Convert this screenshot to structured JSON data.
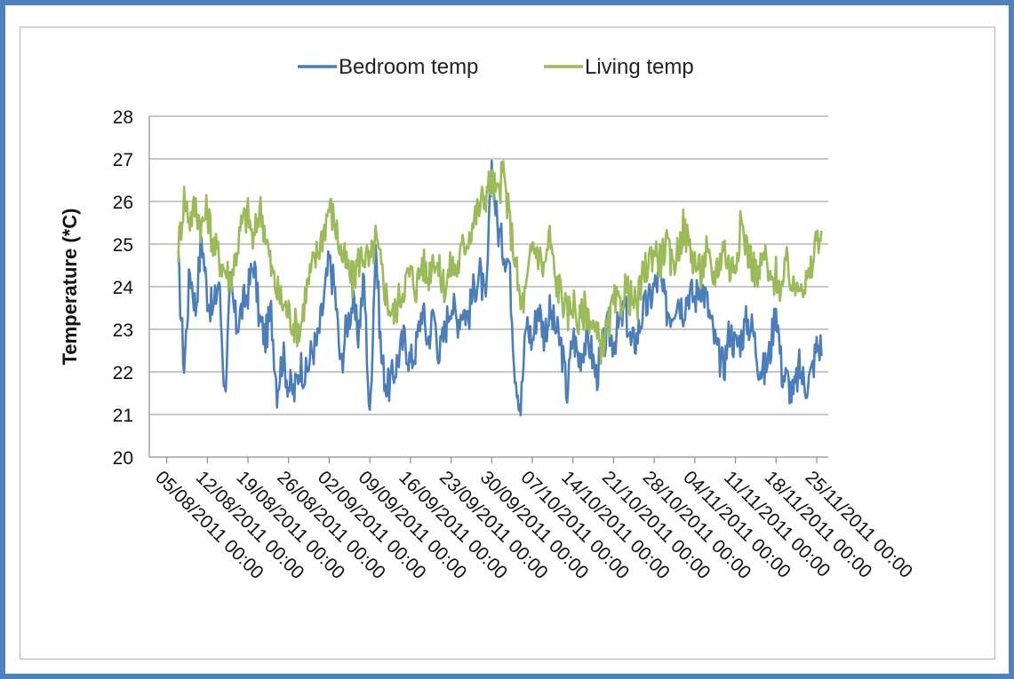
{
  "chart_data": {
    "type": "line",
    "title": "",
    "xlabel": "",
    "ylabel": "Temperature (*C)",
    "ylim": [
      20,
      28
    ],
    "yticks": [
      20,
      21,
      22,
      23,
      24,
      25,
      26,
      27,
      28
    ],
    "xlim": [
      "2011-08-02",
      "2011-11-27"
    ],
    "grid": "horizontal",
    "legend_position": "top",
    "tick_labels": [
      "05/08/2011 00:00",
      "12/08/2011 00:00",
      "19/08/2011 00:00",
      "26/08/2011 00:00",
      "02/09/2011 00:00",
      "09/09/2011 00:00",
      "16/09/2011 00:00",
      "23/09/2011 00:00",
      "30/09/2011 00:00",
      "07/10/2011 00:00",
      "14/10/2011 00:00",
      "21/10/2011 00:00",
      "28/10/2011 00:00",
      "04/11/2011 00:00",
      "11/11/2011 00:00",
      "18/11/2011 00:00",
      "25/11/2011 00:00"
    ],
    "tick_dates": [
      "2011-08-05",
      "2011-08-12",
      "2011-08-19",
      "2011-08-26",
      "2011-09-02",
      "2011-09-09",
      "2011-09-16",
      "2011-09-23",
      "2011-09-30",
      "2011-10-07",
      "2011-10-14",
      "2011-10-21",
      "2011-10-28",
      "2011-11-04",
      "2011-11-11",
      "2011-11-18",
      "2011-11-25"
    ],
    "series": [
      {
        "name": "Bedroom temp",
        "color": "#4a7ebb",
        "x": [
          "2011-08-07",
          "2011-08-08",
          "2011-08-09",
          "2011-08-10",
          "2011-08-11",
          "2011-08-12",
          "2011-08-13",
          "2011-08-14",
          "2011-08-15",
          "2011-08-16",
          "2011-08-17",
          "2011-08-18",
          "2011-08-19",
          "2011-08-20",
          "2011-08-21",
          "2011-08-22",
          "2011-08-23",
          "2011-08-24",
          "2011-08-25",
          "2011-08-26",
          "2011-08-27",
          "2011-08-28",
          "2011-08-29",
          "2011-08-30",
          "2011-08-31",
          "2011-09-01",
          "2011-09-02",
          "2011-09-03",
          "2011-09-04",
          "2011-09-05",
          "2011-09-06",
          "2011-09-07",
          "2011-09-08",
          "2011-09-09",
          "2011-09-10",
          "2011-09-11",
          "2011-09-12",
          "2011-09-13",
          "2011-09-14",
          "2011-09-15",
          "2011-09-16",
          "2011-09-17",
          "2011-09-18",
          "2011-09-19",
          "2011-09-20",
          "2011-09-21",
          "2011-09-22",
          "2011-09-23",
          "2011-09-24",
          "2011-09-25",
          "2011-09-26",
          "2011-09-27",
          "2011-09-28",
          "2011-09-29",
          "2011-09-30",
          "2011-10-01",
          "2011-10-02",
          "2011-10-03",
          "2011-10-04",
          "2011-10-05",
          "2011-10-06",
          "2011-10-07",
          "2011-10-08",
          "2011-10-09",
          "2011-10-10",
          "2011-10-11",
          "2011-10-12",
          "2011-10-13",
          "2011-10-14",
          "2011-10-15",
          "2011-10-16",
          "2011-10-17",
          "2011-10-18",
          "2011-10-19",
          "2011-10-20",
          "2011-10-21",
          "2011-10-22",
          "2011-10-23",
          "2011-10-24",
          "2011-10-25",
          "2011-10-26",
          "2011-10-27",
          "2011-10-28",
          "2011-10-29",
          "2011-10-30",
          "2011-10-31",
          "2011-11-01",
          "2011-11-02",
          "2011-11-03",
          "2011-11-04",
          "2011-11-05",
          "2011-11-06",
          "2011-11-07",
          "2011-11-08",
          "2011-11-09",
          "2011-11-10",
          "2011-11-11",
          "2011-11-12",
          "2011-11-13",
          "2011-11-14",
          "2011-11-15",
          "2011-11-16",
          "2011-11-17",
          "2011-11-18",
          "2011-11-19",
          "2011-11-20",
          "2011-11-21",
          "2011-11-22",
          "2011-11-23",
          "2011-11-24",
          "2011-11-25"
        ],
        "y": [
          24.5,
          22.1,
          24.4,
          23.5,
          25.2,
          23.8,
          23.4,
          24.2,
          21.5,
          24.0,
          23.1,
          23.5,
          23.9,
          24.6,
          23.2,
          22.8,
          23.4,
          21.6,
          22.4,
          21.7,
          21.5,
          22.2,
          21.9,
          22.5,
          22.7,
          23.6,
          24.6,
          23.9,
          22.1,
          23.1,
          23.6,
          22.9,
          24.2,
          20.8,
          25.1,
          22.3,
          21.6,
          21.9,
          22.4,
          22.8,
          22.2,
          22.6,
          23.5,
          22.7,
          23.4,
          22.4,
          23.0,
          23.7,
          23.2,
          23.5,
          23.3,
          24.0,
          24.3,
          23.5,
          26.9,
          25.4,
          24.9,
          24.6,
          22.1,
          21.2,
          23.2,
          22.7,
          23.6,
          22.9,
          23.4,
          23.0,
          22.6,
          21.5,
          22.9,
          22.3,
          22.7,
          22.6,
          21.9,
          22.4,
          23.0,
          22.7,
          23.1,
          23.5,
          22.6,
          22.8,
          23.4,
          23.6,
          24.0,
          24.2,
          23.5,
          23.4,
          23.8,
          23.5,
          23.9,
          23.7,
          24.1,
          23.7,
          23.0,
          22.4,
          22.1,
          23.0,
          22.6,
          22.8,
          23.2,
          23.0,
          22.2,
          22.0,
          22.5,
          23.6,
          22.0,
          21.8,
          21.4,
          22.1,
          21.7,
          21.9,
          22.6
        ]
      },
      {
        "name": "Living temp",
        "color": "#9bbb59",
        "x": [
          "2011-08-07",
          "2011-08-08",
          "2011-08-09",
          "2011-08-10",
          "2011-08-11",
          "2011-08-12",
          "2011-08-13",
          "2011-08-14",
          "2011-08-15",
          "2011-08-16",
          "2011-08-17",
          "2011-08-18",
          "2011-08-19",
          "2011-08-20",
          "2011-08-21",
          "2011-08-22",
          "2011-08-23",
          "2011-08-24",
          "2011-08-25",
          "2011-08-26",
          "2011-08-27",
          "2011-08-28",
          "2011-08-29",
          "2011-08-30",
          "2011-08-31",
          "2011-09-01",
          "2011-09-02",
          "2011-09-03",
          "2011-09-04",
          "2011-09-05",
          "2011-09-06",
          "2011-09-07",
          "2011-09-08",
          "2011-09-09",
          "2011-09-10",
          "2011-09-11",
          "2011-09-12",
          "2011-09-13",
          "2011-09-14",
          "2011-09-15",
          "2011-09-16",
          "2011-09-17",
          "2011-09-18",
          "2011-09-19",
          "2011-09-20",
          "2011-09-21",
          "2011-09-22",
          "2011-09-23",
          "2011-09-24",
          "2011-09-25",
          "2011-09-26",
          "2011-09-27",
          "2011-09-28",
          "2011-09-29",
          "2011-09-30",
          "2011-10-01",
          "2011-10-02",
          "2011-10-03",
          "2011-10-04",
          "2011-10-05",
          "2011-10-06",
          "2011-10-07",
          "2011-10-08",
          "2011-10-09",
          "2011-10-10",
          "2011-10-11",
          "2011-10-12",
          "2011-10-13",
          "2011-10-14",
          "2011-10-15",
          "2011-10-16",
          "2011-10-17",
          "2011-10-18",
          "2011-10-19",
          "2011-10-20",
          "2011-10-21",
          "2011-10-22",
          "2011-10-23",
          "2011-10-24",
          "2011-10-25",
          "2011-10-26",
          "2011-10-27",
          "2011-10-28",
          "2011-10-29",
          "2011-10-30",
          "2011-10-31",
          "2011-11-01",
          "2011-11-02",
          "2011-11-03",
          "2011-11-04",
          "2011-11-05",
          "2011-11-06",
          "2011-11-07",
          "2011-11-08",
          "2011-11-09",
          "2011-11-10",
          "2011-11-11",
          "2011-11-12",
          "2011-11-13",
          "2011-11-14",
          "2011-11-15",
          "2011-11-16",
          "2011-11-17",
          "2011-11-18",
          "2011-11-19",
          "2011-11-20",
          "2011-11-21",
          "2011-11-22",
          "2011-11-23",
          "2011-11-24",
          "2011-11-25"
        ],
        "y": [
          24.9,
          26.1,
          25.6,
          25.9,
          25.4,
          25.8,
          25.0,
          24.7,
          24.4,
          24.2,
          24.8,
          25.5,
          25.7,
          25.0,
          25.9,
          25.3,
          24.4,
          23.9,
          23.6,
          23.4,
          23.1,
          23.0,
          23.9,
          24.4,
          24.8,
          25.3,
          25.9,
          25.5,
          24.8,
          24.5,
          24.1,
          24.6,
          24.8,
          24.5,
          25.1,
          24.4,
          23.7,
          23.3,
          23.7,
          24.1,
          24.3,
          24.0,
          24.6,
          24.2,
          24.8,
          24.3,
          24.0,
          24.5,
          24.4,
          24.9,
          25.2,
          25.6,
          25.9,
          26.2,
          26.5,
          26.1,
          26.7,
          25.6,
          24.7,
          23.5,
          23.9,
          25.0,
          24.8,
          24.4,
          25.2,
          24.1,
          23.9,
          23.3,
          23.7,
          23.1,
          23.5,
          23.3,
          22.8,
          22.6,
          23.0,
          23.6,
          23.5,
          24.0,
          23.7,
          23.5,
          24.2,
          24.6,
          24.9,
          24.6,
          25.0,
          24.5,
          24.8,
          25.4,
          25.0,
          24.6,
          24.3,
          24.8,
          24.2,
          24.5,
          25.0,
          24.4,
          24.6,
          25.5,
          24.9,
          24.5,
          24.2,
          24.8,
          24.0,
          24.3,
          23.9,
          24.6,
          23.8,
          24.3,
          24.0,
          24.3,
          25.2
        ]
      }
    ]
  }
}
